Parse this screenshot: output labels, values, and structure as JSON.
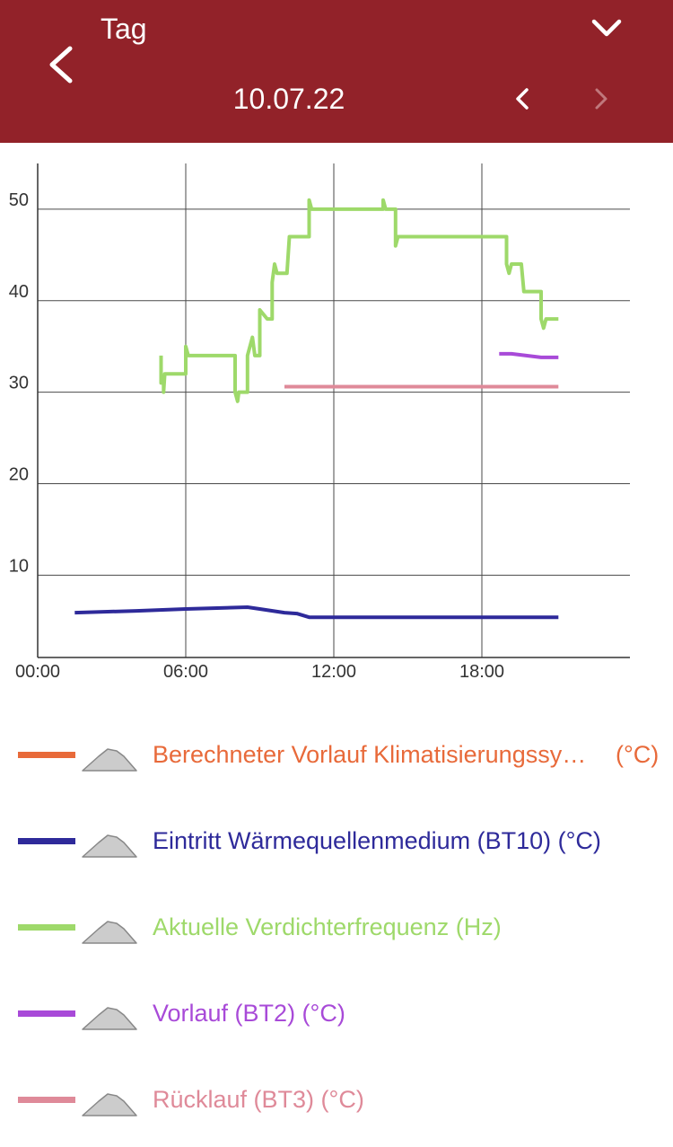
{
  "header": {
    "period": "Tag",
    "date": "10.07.22"
  },
  "colors": {
    "header_bg": "#922229",
    "grid": "#4a4a4a"
  },
  "chart_data": {
    "type": "line",
    "x_ticks": [
      "00:00",
      "06:00",
      "12:00",
      "18:00"
    ],
    "y_ticks": [
      "10",
      "20",
      "30",
      "40",
      "50"
    ],
    "xlim_hours": [
      0,
      24
    ],
    "ylim": [
      1,
      55
    ],
    "grid": true,
    "series": [
      {
        "name": "Eintritt Wärmequellenmedium (BT10)",
        "color": "#2e2a9a",
        "points": [
          [
            1.5,
            5.9
          ],
          [
            4,
            6.1
          ],
          [
            6,
            6.3
          ],
          [
            8.5,
            6.5
          ],
          [
            9,
            6.3
          ],
          [
            10,
            5.9
          ],
          [
            10.5,
            5.8
          ],
          [
            11,
            5.4
          ],
          [
            12,
            5.4
          ],
          [
            18,
            5.4
          ],
          [
            21.1,
            5.4
          ]
        ]
      },
      {
        "name": "Aktuelle Verdichterfrequenz",
        "color": "#9ed96a",
        "points": [
          [
            5,
            34
          ],
          [
            5,
            31
          ],
          [
            5.1,
            31
          ],
          [
            5.1,
            30
          ],
          [
            5.15,
            32
          ],
          [
            6,
            32
          ],
          [
            6,
            35
          ],
          [
            6.1,
            34
          ],
          [
            8,
            34
          ],
          [
            8,
            30
          ],
          [
            8.1,
            29
          ],
          [
            8.15,
            30
          ],
          [
            8.5,
            30
          ],
          [
            8.5,
            34
          ],
          [
            8.7,
            36
          ],
          [
            8.8,
            34
          ],
          [
            9,
            34
          ],
          [
            9,
            39
          ],
          [
            9.3,
            38
          ],
          [
            9.5,
            38
          ],
          [
            9.5,
            42
          ],
          [
            9.6,
            44
          ],
          [
            9.7,
            43
          ],
          [
            10.1,
            43
          ],
          [
            10.2,
            47
          ],
          [
            11,
            47
          ],
          [
            11,
            51
          ],
          [
            11.1,
            50
          ],
          [
            14,
            50
          ],
          [
            14,
            51
          ],
          [
            14.1,
            50
          ],
          [
            14.5,
            50
          ],
          [
            14.5,
            46
          ],
          [
            14.6,
            47
          ],
          [
            19,
            47
          ],
          [
            19,
            44
          ],
          [
            19.1,
            43
          ],
          [
            19.2,
            44
          ],
          [
            19.6,
            44
          ],
          [
            19.7,
            41
          ],
          [
            20.4,
            41
          ],
          [
            20.4,
            38
          ],
          [
            20.5,
            37
          ],
          [
            20.6,
            38
          ],
          [
            21.1,
            38
          ]
        ]
      },
      {
        "name": "Vorlauf (BT2)",
        "color": "#a84ad8",
        "points": [
          [
            18.7,
            34.2
          ],
          [
            19.2,
            34.2
          ],
          [
            19.8,
            34.0
          ],
          [
            20.4,
            33.8
          ],
          [
            21.1,
            33.8
          ]
        ]
      },
      {
        "name": "Rücklauf (BT3)",
        "color": "#df8a99",
        "points": [
          [
            10,
            30.6
          ],
          [
            21.1,
            30.6
          ]
        ]
      }
    ]
  },
  "legend": {
    "items": [
      {
        "label": "Berechneter Vorlauf Klimatisierungssystem",
        "unit": "(°C)",
        "color": "#e86a3a"
      },
      {
        "label": "Eintritt Wärmequellenmedium (BT10) (°C)",
        "color": "#2e2a9a"
      },
      {
        "label": "Aktuelle Verdichterfrequenz (Hz)",
        "color": "#9ed96a"
      },
      {
        "label": "Vorlauf (BT2) (°C)",
        "color": "#a84ad8"
      },
      {
        "label": "Rücklauf (BT3) (°C)",
        "color": "#df8a99"
      }
    ]
  }
}
